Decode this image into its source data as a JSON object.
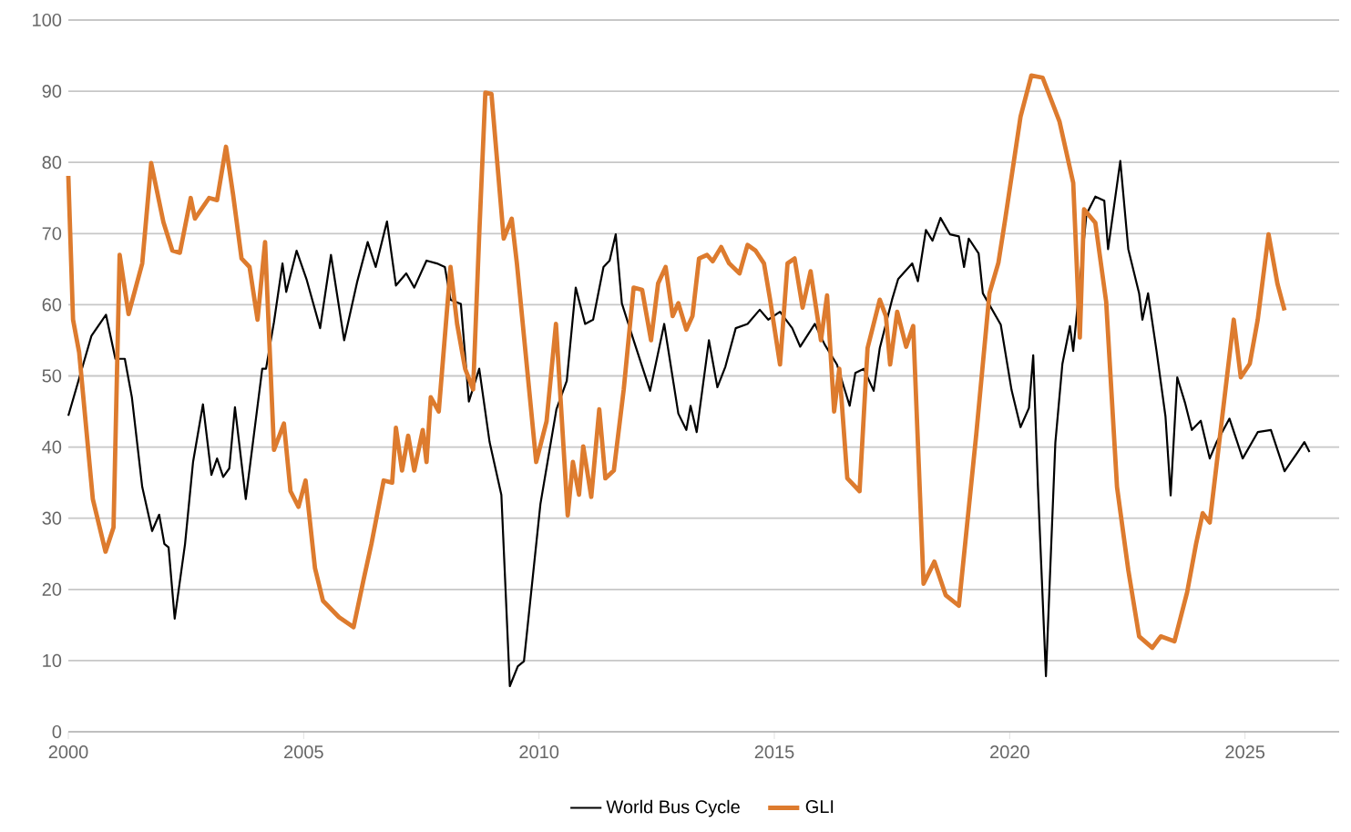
{
  "chart_data": {
    "type": "line",
    "xlim": [
      2000,
      2027
    ],
    "ylim": [
      0,
      100
    ],
    "xticks": [
      2000,
      2005,
      2010,
      2015,
      2020,
      2025
    ],
    "yticks": [
      0,
      10,
      20,
      30,
      40,
      50,
      60,
      70,
      80,
      90,
      100
    ],
    "grid": "y",
    "legend": "bottom",
    "series": [
      {
        "name": "World Bus Cycle",
        "color": "#000000",
        "x": [
          2000.0,
          2000.49,
          2000.8,
          2001.0,
          2001.2,
          2001.35,
          2001.57,
          2001.78,
          2001.93,
          2002.04,
          2002.13,
          2002.26,
          2002.48,
          2002.65,
          2002.86,
          2003.04,
          2003.16,
          2003.29,
          2003.42,
          2003.54,
          2003.77,
          2004.12,
          2004.2,
          2004.37,
          2004.55,
          2004.63,
          2004.85,
          2005.06,
          2005.35,
          2005.58,
          2005.86,
          2006.14,
          2006.36,
          2006.53,
          2006.77,
          2006.96,
          2007.18,
          2007.35,
          2007.61,
          2007.83,
          2008.0,
          2008.12,
          2008.34,
          2008.51,
          2008.73,
          2008.95,
          2009.2,
          2009.38,
          2009.55,
          2009.68,
          2010.03,
          2010.37,
          2010.59,
          2010.78,
          2010.98,
          2011.15,
          2011.37,
          2011.5,
          2011.63,
          2011.76,
          2012.01,
          2012.36,
          2012.66,
          2012.96,
          2013.13,
          2013.22,
          2013.35,
          2013.61,
          2013.79,
          2013.96,
          2014.18,
          2014.43,
          2014.69,
          2014.87,
          2015.12,
          2015.38,
          2015.55,
          2015.86,
          2016.07,
          2016.33,
          2016.6,
          2016.72,
          2016.9,
          2017.11,
          2017.24,
          2017.5,
          2017.63,
          2017.93,
          2018.05,
          2018.22,
          2018.36,
          2018.53,
          2018.73,
          2018.92,
          2019.03,
          2019.13,
          2019.34,
          2019.43,
          2019.81,
          2020.04,
          2020.23,
          2020.41,
          2020.5,
          2020.6,
          2020.77,
          2020.97,
          2021.12,
          2021.28,
          2021.35,
          2021.63,
          2021.82,
          2022.01,
          2022.09,
          2022.35,
          2022.52,
          2022.75,
          2022.82,
          2022.94,
          2023.12,
          2023.31,
          2023.42,
          2023.56,
          2023.73,
          2023.87,
          2024.06,
          2024.25,
          2024.39,
          2024.67,
          2024.95,
          2025.27,
          2025.55,
          2025.84,
          2026.12,
          2026.26,
          2026.37
        ],
        "values": [
          44.4,
          55.6,
          58.6,
          52.4,
          52.4,
          47,
          34.4,
          28.2,
          30.5,
          26.4,
          25.9,
          15.9,
          26.4,
          37.9,
          46,
          36.1,
          38.4,
          35.8,
          37,
          45.6,
          32.7,
          51,
          51,
          57.6,
          65.8,
          61.8,
          67.6,
          63.6,
          56.7,
          67,
          55,
          63.3,
          68.8,
          65.3,
          71.7,
          62.7,
          64.4,
          62.4,
          66.2,
          65.8,
          65.3,
          60.7,
          60.1,
          46.4,
          51,
          40.7,
          33.3,
          6.4,
          9.2,
          9.9,
          32,
          45.3,
          49.3,
          62.4,
          57.3,
          57.9,
          65.3,
          66.2,
          69.9,
          60.2,
          55,
          47.9,
          57.3,
          44.7,
          42.4,
          45.8,
          42.1,
          55,
          48.4,
          51.3,
          56.7,
          57.3,
          59.3,
          57.9,
          59,
          56.7,
          54.1,
          57.3,
          54.4,
          51.6,
          45.8,
          50.4,
          51,
          47.9,
          53.9,
          60.7,
          63.6,
          65.8,
          63.3,
          70.5,
          69,
          72.2,
          69.9,
          69.6,
          65.3,
          69.3,
          67.2,
          61.6,
          57.2,
          48,
          42.8,
          45.5,
          52.9,
          34.4,
          7.8,
          40.6,
          51.7,
          57,
          53.5,
          72.7,
          75.2,
          74.6,
          67.8,
          80.2,
          67.8,
          61.6,
          57.9,
          61.6,
          53.5,
          44.3,
          33.2,
          49.8,
          46.1,
          42.4,
          43.7,
          38.4,
          40.6,
          44,
          38.4,
          42.1,
          42.4,
          36.6,
          39.3,
          40.7,
          39.3
        ]
      },
      {
        "name": "GLI",
        "color": "#dd7b2e",
        "x": [
          2000.0,
          2000.1,
          2000.23,
          2000.52,
          2000.79,
          2000.96,
          2001.09,
          2001.28,
          2001.57,
          2001.76,
          2002.02,
          2002.21,
          2002.37,
          2002.6,
          2002.69,
          2002.99,
          2003.16,
          2003.35,
          2003.5,
          2003.68,
          2003.85,
          2004.02,
          2004.18,
          2004.37,
          2004.58,
          2004.72,
          2004.89,
          2005.04,
          2005.24,
          2005.41,
          2005.75,
          2006.06,
          2006.27,
          2006.44,
          2006.7,
          2006.88,
          2006.96,
          2007.09,
          2007.22,
          2007.35,
          2007.53,
          2007.61,
          2007.7,
          2007.87,
          2008.12,
          2008.26,
          2008.43,
          2008.6,
          2008.73,
          2008.86,
          2008.99,
          2009.25,
          2009.42,
          2009.53,
          2009.94,
          2010.16,
          2010.36,
          2010.61,
          2010.72,
          2010.85,
          2010.94,
          2011.11,
          2011.28,
          2011.41,
          2011.59,
          2011.8,
          2012.01,
          2012.19,
          2012.38,
          2012.53,
          2012.69,
          2012.84,
          2012.96,
          2013.13,
          2013.26,
          2013.4,
          2013.57,
          2013.69,
          2013.87,
          2014.04,
          2014.26,
          2014.43,
          2014.6,
          2014.78,
          2014.91,
          2015.12,
          2015.28,
          2015.43,
          2015.6,
          2015.77,
          2015.99,
          2016.12,
          2016.27,
          2016.38,
          2016.55,
          2016.81,
          2016.98,
          2017.24,
          2017.37,
          2017.46,
          2017.61,
          2017.8,
          2017.95,
          2018.17,
          2018.4,
          2018.64,
          2018.92,
          2019.29,
          2019.57,
          2019.76,
          2019.9,
          2020.23,
          2020.46,
          2020.7,
          2021.06,
          2021.35,
          2021.49,
          2021.58,
          2021.82,
          2022.05,
          2022.28,
          2022.52,
          2022.75,
          2023.03,
          2023.21,
          2023.5,
          2023.77,
          2023.96,
          2024.1,
          2024.25,
          2024.76,
          2024.91,
          2025.1,
          2025.27,
          2025.5,
          2025.69,
          2025.84
        ],
        "values": [
          78.1,
          57.9,
          53.3,
          32.7,
          25.3,
          28.7,
          67,
          58.7,
          65.8,
          79.9,
          71.6,
          67.6,
          67.3,
          75,
          72.1,
          75,
          74.7,
          82.2,
          75.5,
          66.5,
          65.3,
          57.9,
          68.8,
          39.6,
          43.3,
          33.8,
          31.6,
          35.3,
          23,
          18.4,
          16.1,
          14.7,
          21.3,
          26.4,
          35.3,
          35,
          42.7,
          36.7,
          41.6,
          36.7,
          42.4,
          37.9,
          47,
          45,
          65.3,
          57.3,
          51,
          48.1,
          69.9,
          89.8,
          89.6,
          69.3,
          72.1,
          65.8,
          37.9,
          43.6,
          57.3,
          30.4,
          37.9,
          33.3,
          40.1,
          33,
          45.3,
          35.6,
          36.7,
          48.1,
          62.4,
          62.1,
          55,
          63,
          65.3,
          58.4,
          60.2,
          56.5,
          58.4,
          66.5,
          67,
          66.1,
          68.1,
          65.8,
          64.4,
          68.4,
          67.6,
          65.8,
          60.7,
          51.6,
          65.8,
          66.5,
          59.6,
          64.7,
          55,
          61.3,
          45,
          51,
          35.6,
          33.8,
          53.9,
          60.7,
          58.4,
          51.6,
          59,
          54.1,
          57,
          20.8,
          23.9,
          19.2,
          17.7,
          41.8,
          61.6,
          65.9,
          71.8,
          86.4,
          92.2,
          91.9,
          85.7,
          77.1,
          55.4,
          73.4,
          71.5,
          60.4,
          34.4,
          22.7,
          13.4,
          11.8,
          13.4,
          12.7,
          19.6,
          26.4,
          30.7,
          29.4,
          57.9,
          49.8,
          51.7,
          57.9,
          69.9,
          62.9,
          59.2
        ]
      }
    ]
  }
}
